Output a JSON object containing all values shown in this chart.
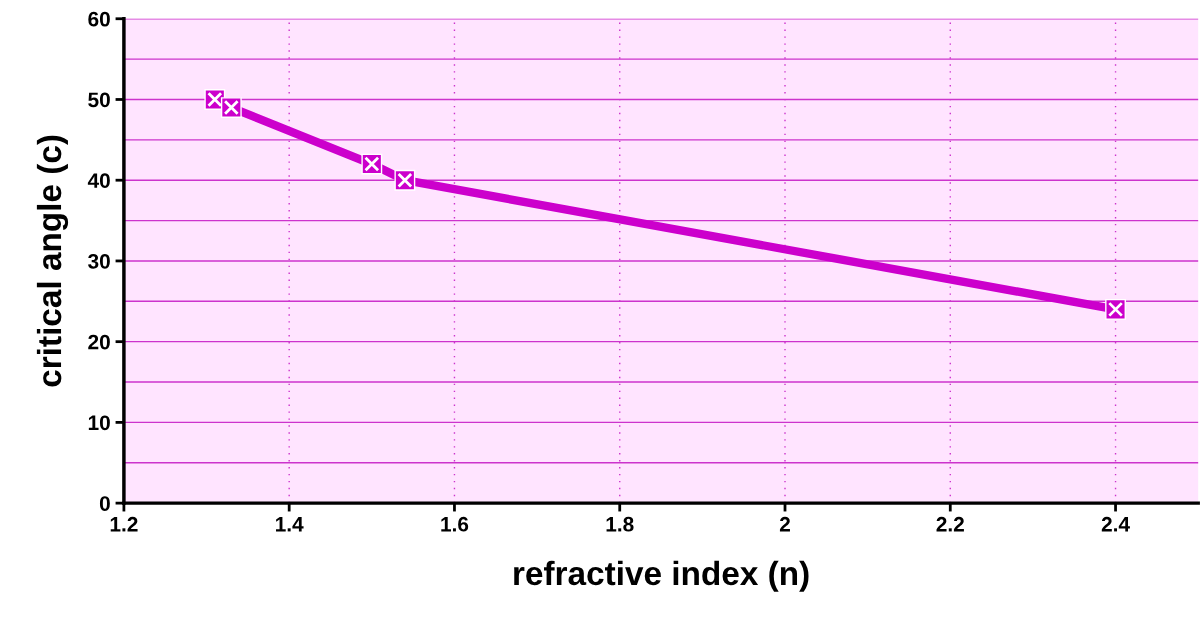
{
  "chart_data": {
    "type": "line",
    "xlabel": "refractive index (n)",
    "ylabel": "critical angle (c)",
    "x": [
      1.31,
      1.33,
      1.5,
      1.54,
      2.4
    ],
    "series": [
      {
        "color": "#cc00cc",
        "values": [
          50,
          49,
          42,
          40,
          24
        ]
      }
    ],
    "xlim": [
      1.2,
      2.5
    ],
    "xticks": [
      1.2,
      1.4,
      1.6,
      1.8,
      2,
      2.2,
      2.4
    ],
    "ylim": [
      0,
      60
    ],
    "yticks": [
      0,
      10,
      20,
      30,
      40,
      50,
      60
    ],
    "grid": true,
    "marker": "square",
    "line_style": "solid"
  }
}
